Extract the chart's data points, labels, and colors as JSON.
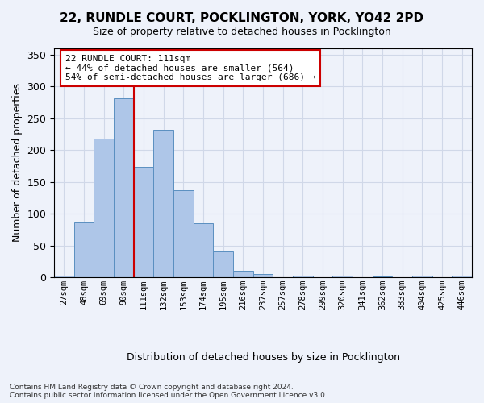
{
  "title_line1": "22, RUNDLE COURT, POCKLINGTON, YORK, YO42 2PD",
  "title_line2": "Size of property relative to detached houses in Pocklington",
  "xlabel": "Distribution of detached houses by size in Pocklington",
  "ylabel": "Number of detached properties",
  "footnote": "Contains HM Land Registry data © Crown copyright and database right 2024.\nContains public sector information licensed under the Open Government Licence v3.0.",
  "bar_values": [
    3,
    86,
    218,
    282,
    174,
    232,
    137,
    85,
    40,
    10,
    5,
    0,
    3,
    0,
    3,
    0,
    1,
    0,
    2,
    0,
    2
  ],
  "bin_labels": [
    "27sqm",
    "48sqm",
    "69sqm",
    "90sqm",
    "111sqm",
    "132sqm",
    "153sqm",
    "174sqm",
    "195sqm",
    "216sqm",
    "237sqm",
    "257sqm",
    "278sqm",
    "299sqm",
    "320sqm",
    "341sqm",
    "362sqm",
    "383sqm",
    "404sqm",
    "425sqm",
    "446sqm"
  ],
  "bar_color": "#aec6e8",
  "bar_edge_color": "#5a8fc0",
  "grid_color": "#d0d8e8",
  "background_color": "#eef2fa",
  "vline_x_index": 4,
  "vline_color": "#cc0000",
  "annotation_text": "22 RUNDLE COURT: 111sqm\n← 44% of detached houses are smaller (564)\n54% of semi-detached houses are larger (686) →",
  "annotation_box_color": "#ffffff",
  "annotation_box_edge": "#cc0000",
  "ylim": [
    0,
    360
  ],
  "yticks": [
    0,
    50,
    100,
    150,
    200,
    250,
    300,
    350
  ]
}
